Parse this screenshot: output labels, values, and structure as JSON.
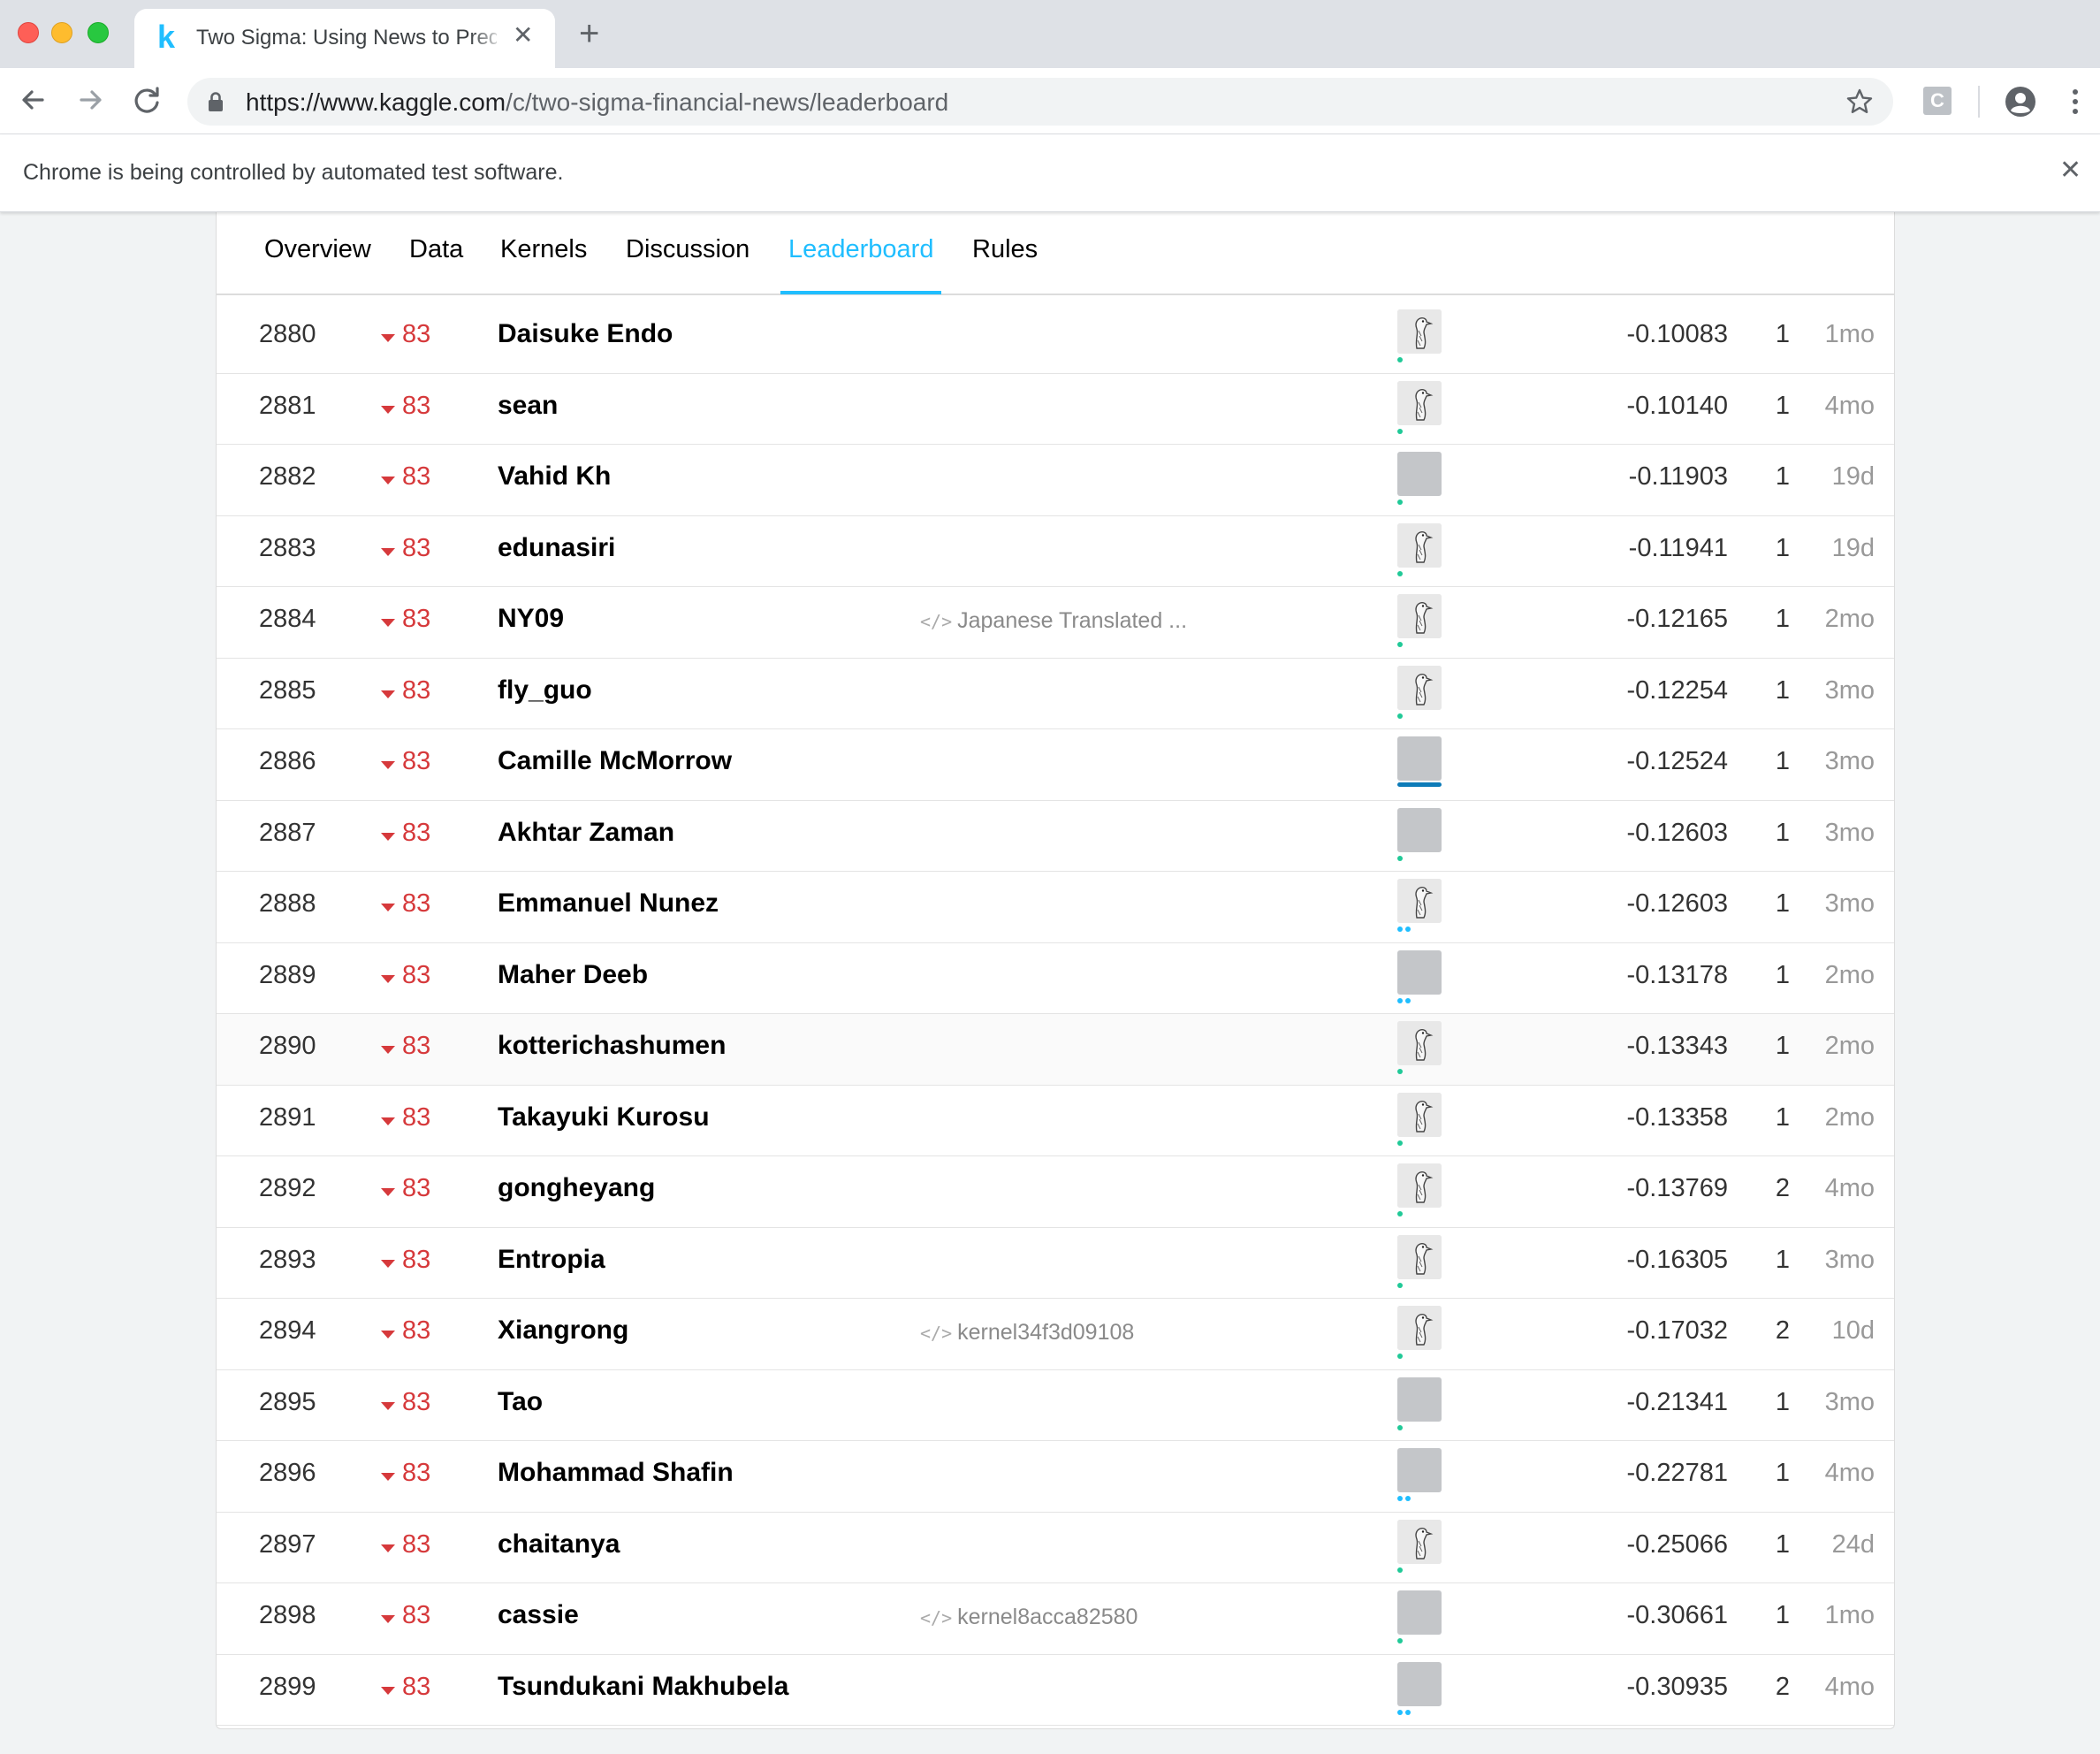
{
  "browser": {
    "tab_title": "Two Sigma: Using News to Predict Stock Movements",
    "tab_favicon": "k",
    "new_tab": "+",
    "url_host": "https://www.kaggle.com",
    "url_path": "/c/two-sigma-financial-news/leaderboard",
    "extension_label": "C",
    "infobar_text": "Chrome is being controlled by automated test software."
  },
  "subnav": {
    "items": [
      "Overview",
      "Data",
      "Kernels",
      "Discussion",
      "Leaderboard",
      "Rules"
    ],
    "active": "Leaderboard"
  },
  "leaderboard": [
    {
      "rank": "2880",
      "delta": "83",
      "team": "Daisuke Endo",
      "kernel": "",
      "avatar": "goose",
      "tier": "dot",
      "score": "-0.10083",
      "entries": "1",
      "last": "1mo"
    },
    {
      "rank": "2881",
      "delta": "83",
      "team": "sean",
      "kernel": "",
      "avatar": "goose",
      "tier": "dot",
      "score": "-0.10140",
      "entries": "1",
      "last": "4mo"
    },
    {
      "rank": "2882",
      "delta": "83",
      "team": "Vahid Kh",
      "kernel": "",
      "avatar": "gray",
      "tier": "dot",
      "score": "-0.11903",
      "entries": "1",
      "last": "19d"
    },
    {
      "rank": "2883",
      "delta": "83",
      "team": "edunasiri",
      "kernel": "",
      "avatar": "goose",
      "tier": "dot",
      "score": "-0.11941",
      "entries": "1",
      "last": "19d"
    },
    {
      "rank": "2884",
      "delta": "83",
      "team": "NY09",
      "kernel": "Japanese Translated ...",
      "avatar": "goose",
      "tier": "dot",
      "score": "-0.12165",
      "entries": "1",
      "last": "2mo"
    },
    {
      "rank": "2885",
      "delta": "83",
      "team": "fly_guo",
      "kernel": "",
      "avatar": "goose",
      "tier": "dot",
      "score": "-0.12254",
      "entries": "1",
      "last": "3mo"
    },
    {
      "rank": "2886",
      "delta": "83",
      "team": "Camille McMorrow",
      "kernel": "",
      "avatar": "gray",
      "tier": "bar",
      "score": "-0.12524",
      "entries": "1",
      "last": "3mo"
    },
    {
      "rank": "2887",
      "delta": "83",
      "team": "Akhtar Zaman",
      "kernel": "",
      "avatar": "gray",
      "tier": "dot",
      "score": "-0.12603",
      "entries": "1",
      "last": "3mo"
    },
    {
      "rank": "2888",
      "delta": "83",
      "team": "Emmanuel Nunez",
      "kernel": "",
      "avatar": "goose",
      "tier": "double",
      "score": "-0.12603",
      "entries": "1",
      "last": "3mo"
    },
    {
      "rank": "2889",
      "delta": "83",
      "team": "Maher Deeb",
      "kernel": "",
      "avatar": "gray",
      "tier": "double",
      "score": "-0.13178",
      "entries": "1",
      "last": "2mo"
    },
    {
      "rank": "2890",
      "delta": "83",
      "team": "kotterichashumen",
      "kernel": "",
      "avatar": "goose",
      "tier": "dot",
      "score": "-0.13343",
      "entries": "1",
      "last": "2mo"
    },
    {
      "rank": "2891",
      "delta": "83",
      "team": "Takayuki Kurosu",
      "kernel": "",
      "avatar": "goose",
      "tier": "dot",
      "score": "-0.13358",
      "entries": "1",
      "last": "2mo"
    },
    {
      "rank": "2892",
      "delta": "83",
      "team": "gongheyang",
      "kernel": "",
      "avatar": "goose",
      "tier": "dot",
      "score": "-0.13769",
      "entries": "2",
      "last": "4mo"
    },
    {
      "rank": "2893",
      "delta": "83",
      "team": "Entropia",
      "kernel": "",
      "avatar": "goose",
      "tier": "dot",
      "score": "-0.16305",
      "entries": "1",
      "last": "3mo"
    },
    {
      "rank": "2894",
      "delta": "83",
      "team": "Xiangrong",
      "kernel": "kernel34f3d09108",
      "avatar": "goose",
      "tier": "dot",
      "score": "-0.17032",
      "entries": "2",
      "last": "10d"
    },
    {
      "rank": "2895",
      "delta": "83",
      "team": "Tao",
      "kernel": "",
      "avatar": "gray",
      "tier": "dot",
      "score": "-0.21341",
      "entries": "1",
      "last": "3mo"
    },
    {
      "rank": "2896",
      "delta": "83",
      "team": "Mohammad Shafin",
      "kernel": "",
      "avatar": "gray",
      "tier": "double",
      "score": "-0.22781",
      "entries": "1",
      "last": "4mo"
    },
    {
      "rank": "2897",
      "delta": "83",
      "team": "chaitanya",
      "kernel": "",
      "avatar": "goose",
      "tier": "dot",
      "score": "-0.25066",
      "entries": "1",
      "last": "24d"
    },
    {
      "rank": "2898",
      "delta": "83",
      "team": "cassie",
      "kernel": "kernel8acca82580",
      "avatar": "gray",
      "tier": "dot",
      "score": "-0.30661",
      "entries": "1",
      "last": "1mo"
    },
    {
      "rank": "2899",
      "delta": "83",
      "team": "Tsundukani Makhubela",
      "kernel": "",
      "avatar": "gray",
      "tier": "double",
      "score": "-0.30935",
      "entries": "2",
      "last": "4mo"
    }
  ],
  "colors": {
    "accent": "#20beff",
    "rank_drop": "#d6393b",
    "tier_contributor": "#20c997",
    "tier_expert": "#20beff",
    "tier_bar": "#0d7bb8"
  },
  "icons": {
    "back": "arrow-left-icon",
    "forward": "arrow-right-icon",
    "reload": "reload-icon",
    "lock": "lock-icon",
    "bookmark": "star-icon",
    "profile": "account-circle-icon",
    "menu": "kebab-menu-icon",
    "kernel": "code-icon",
    "rank_change": "triangle-down-icon"
  }
}
